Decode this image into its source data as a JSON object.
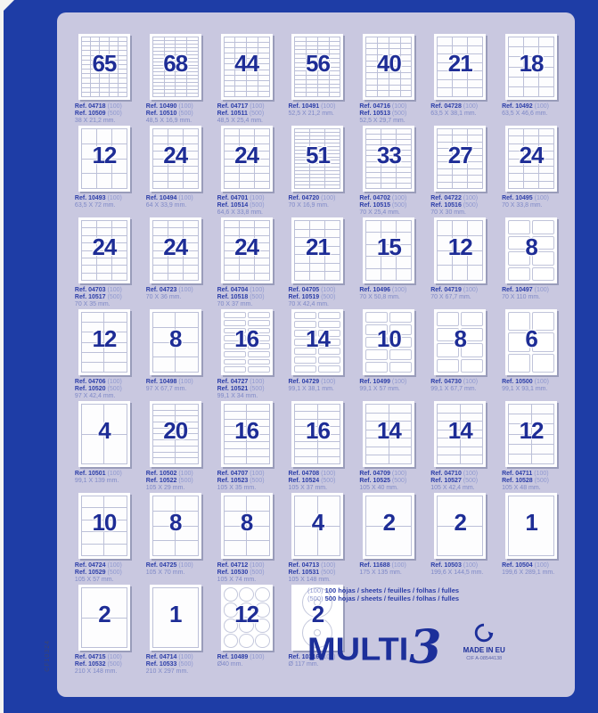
{
  "page": {
    "side_code": "CF10324",
    "colors": {
      "border_blue": "#1e3da6",
      "panel_lavender": "#c9c8e0",
      "brand_blue": "#1c2f9a",
      "count_blue": "#1e2d96"
    }
  },
  "legend": [
    {
      "qty": "(100)",
      "text": "100 hojas / sheets / feuilles / folhas / fulles"
    },
    {
      "qty": "(500)",
      "text": "500 hojas / sheets / feuilles / folhas / fulles"
    }
  ],
  "brand": {
    "name": "MULTI",
    "three": "3",
    "made_in": "MADE IN EU",
    "cif": "CIF A-08544138"
  },
  "products": [
    {
      "n": "65",
      "c": 5,
      "r": 13,
      "s": "rect",
      "refs": [
        [
          "Ref. 04718",
          "(100)"
        ],
        [
          "Ref. 10509",
          "(500)"
        ]
      ],
      "d": "38 X 21,2 mm."
    },
    {
      "n": "68",
      "c": 4,
      "r": 17,
      "s": "rect",
      "refs": [
        [
          "Ref. 10490",
          "(100)"
        ],
        [
          "Ref. 10510",
          "(500)"
        ]
      ],
      "d": "48,5 X 16,9 mm."
    },
    {
      "n": "44",
      "c": 4,
      "r": 11,
      "s": "rect",
      "refs": [
        [
          "Ref. 04717",
          "(100)"
        ],
        [
          "Ref. 10511",
          "(500)"
        ]
      ],
      "d": "48,5 X 25,4 mm."
    },
    {
      "n": "56",
      "c": 4,
      "r": 14,
      "s": "rect",
      "refs": [
        [
          "Ref. 10491",
          "(100)"
        ]
      ],
      "d": "52,5 X 21,2 mm."
    },
    {
      "n": "40",
      "c": 4,
      "r": 10,
      "s": "rect",
      "refs": [
        [
          "Ref. 04716",
          "(100)"
        ],
        [
          "Ref. 10513",
          "(500)"
        ]
      ],
      "d": "52,5 X 29,7 mm."
    },
    {
      "n": "21",
      "c": 3,
      "r": 7,
      "s": "rect",
      "refs": [
        [
          "Ref. 04728",
          "(100)"
        ]
      ],
      "d": "63,5 X 38,1 mm."
    },
    {
      "n": "18",
      "c": 3,
      "r": 6,
      "s": "rect",
      "refs": [
        [
          "Ref. 10492",
          "(100)"
        ]
      ],
      "d": "63,5 X 46,6 mm."
    },
    {
      "n": "12",
      "c": 3,
      "r": 4,
      "s": "rect",
      "refs": [
        [
          "Ref. 10493",
          "(100)"
        ]
      ],
      "d": "63,5 X 72 mm."
    },
    {
      "n": "24",
      "c": 3,
      "r": 8,
      "s": "rect",
      "refs": [
        [
          "Ref. 10494",
          "(100)"
        ]
      ],
      "d": "64 X 33,9 mm."
    },
    {
      "n": "24",
      "c": 3,
      "r": 8,
      "s": "rect",
      "refs": [
        [
          "Ref. 04701",
          "(100)"
        ],
        [
          "Ref. 10514",
          "(500)"
        ]
      ],
      "d": "64,6 X 33,8 mm."
    },
    {
      "n": "51",
      "c": 3,
      "r": 17,
      "s": "rect",
      "refs": [
        [
          "Ref. 04720",
          "(100)"
        ]
      ],
      "d": "70 X 16,9 mm."
    },
    {
      "n": "33",
      "c": 3,
      "r": 11,
      "s": "rect",
      "refs": [
        [
          "Ref. 04702",
          "(100)"
        ],
        [
          "Ref. 10515",
          "(500)"
        ]
      ],
      "d": "70 X 25,4 mm."
    },
    {
      "n": "27",
      "c": 3,
      "r": 9,
      "s": "rect",
      "refs": [
        [
          "Ref. 04722",
          "(100)"
        ],
        [
          "Ref. 10516",
          "(500)"
        ]
      ],
      "d": "70 X 30 mm."
    },
    {
      "n": "24",
      "c": 3,
      "r": 8,
      "s": "rect",
      "refs": [
        [
          "Ref. 10495",
          "(100)"
        ]
      ],
      "d": "70 X 33,8 mm."
    },
    {
      "n": "24",
      "c": 3,
      "r": 8,
      "s": "rect",
      "refs": [
        [
          "Ref. 04703",
          "(100)"
        ],
        [
          "Ref. 10517",
          "(500)"
        ]
      ],
      "d": "70 X 35 mm."
    },
    {
      "n": "24",
      "c": 3,
      "r": 8,
      "s": "rect",
      "refs": [
        [
          "Ref. 04723",
          "(100)"
        ]
      ],
      "d": "70 X 36 mm."
    },
    {
      "n": "24",
      "c": 3,
      "r": 8,
      "s": "rect",
      "refs": [
        [
          "Ref. 04704",
          "(100)"
        ],
        [
          "Ref. 10518",
          "(500)"
        ]
      ],
      "d": "70 X 37 mm."
    },
    {
      "n": "21",
      "c": 3,
      "r": 7,
      "s": "rect",
      "refs": [
        [
          "Ref. 04705",
          "(100)"
        ],
        [
          "Ref. 10519",
          "(500)"
        ]
      ],
      "d": "70 X 42,4 mm."
    },
    {
      "n": "15",
      "c": 3,
      "r": 5,
      "s": "rect",
      "refs": [
        [
          "Ref. 10496",
          "(100)"
        ]
      ],
      "d": "70 X 50,8 mm."
    },
    {
      "n": "12",
      "c": 3,
      "r": 4,
      "s": "rect",
      "refs": [
        [
          "Ref. 04719",
          "(100)"
        ]
      ],
      "d": "70 X 67,7 mm."
    },
    {
      "n": "8",
      "c": 2,
      "r": 4,
      "s": "round",
      "refs": [
        [
          "Ref. 10497",
          "(100)"
        ]
      ],
      "d": "70 X 110 mm."
    },
    {
      "n": "12",
      "c": 2,
      "r": 6,
      "s": "rect",
      "refs": [
        [
          "Ref. 04706",
          "(100)"
        ],
        [
          "Ref. 10520",
          "(500)"
        ]
      ],
      "d": "97 X 42,4 mm."
    },
    {
      "n": "8",
      "c": 2,
      "r": 4,
      "s": "rect",
      "refs": [
        [
          "Ref. 10498",
          "(100)"
        ]
      ],
      "d": "97 X 67,7 mm."
    },
    {
      "n": "16",
      "c": 2,
      "r": 8,
      "s": "round",
      "refs": [
        [
          "Ref. 04727",
          "(100)"
        ],
        [
          "Ref. 10521",
          "(500)"
        ]
      ],
      "d": "99,1 X 34 mm."
    },
    {
      "n": "14",
      "c": 2,
      "r": 7,
      "s": "round",
      "refs": [
        [
          "Ref. 04729",
          "(100)"
        ]
      ],
      "d": "99,1 X 38,1 mm."
    },
    {
      "n": "10",
      "c": 2,
      "r": 5,
      "s": "round",
      "refs": [
        [
          "Ref. 10499",
          "(100)"
        ]
      ],
      "d": "99,1 X 57 mm."
    },
    {
      "n": "8",
      "c": 2,
      "r": 4,
      "s": "round",
      "refs": [
        [
          "Ref. 04730",
          "(100)"
        ]
      ],
      "d": "99,1 X 67,7 mm."
    },
    {
      "n": "6",
      "c": 2,
      "r": 3,
      "s": "round",
      "refs": [
        [
          "Ref. 10500",
          "(100)"
        ]
      ],
      "d": "99,1 X 93,1 mm."
    },
    {
      "n": "4",
      "c": 2,
      "r": 2,
      "s": "rect",
      "refs": [
        [
          "Ref. 10501",
          "(100)"
        ]
      ],
      "d": "99,1 X 139 mm."
    },
    {
      "n": "20",
      "c": 2,
      "r": 10,
      "s": "rect",
      "refs": [
        [
          "Ref. 10502",
          "(100)"
        ],
        [
          "Ref. 10522",
          "(500)"
        ]
      ],
      "d": "105 X 29 mm."
    },
    {
      "n": "16",
      "c": 2,
      "r": 8,
      "s": "rect",
      "refs": [
        [
          "Ref. 04707",
          "(100)"
        ],
        [
          "Ref. 10523",
          "(500)"
        ]
      ],
      "d": "105 X 35 mm."
    },
    {
      "n": "16",
      "c": 2,
      "r": 8,
      "s": "rect",
      "refs": [
        [
          "Ref. 04708",
          "(100)"
        ],
        [
          "Ref. 10524",
          "(500)"
        ]
      ],
      "d": "105 X 37 mm."
    },
    {
      "n": "14",
      "c": 2,
      "r": 7,
      "s": "rect",
      "refs": [
        [
          "Ref. 04709",
          "(100)"
        ],
        [
          "Ref. 10525",
          "(500)"
        ]
      ],
      "d": "105 X 40 mm."
    },
    {
      "n": "14",
      "c": 2,
      "r": 7,
      "s": "rect",
      "refs": [
        [
          "Ref. 04710",
          "(100)"
        ],
        [
          "Ref. 10527",
          "(500)"
        ]
      ],
      "d": "105 X 42,4 mm."
    },
    {
      "n": "12",
      "c": 2,
      "r": 6,
      "s": "rect",
      "refs": [
        [
          "Ref. 04711",
          "(100)"
        ],
        [
          "Ref. 10528",
          "(500)"
        ]
      ],
      "d": "105 X 48 mm."
    },
    {
      "n": "10",
      "c": 2,
      "r": 5,
      "s": "rect",
      "refs": [
        [
          "Ref. 04724",
          "(100)"
        ],
        [
          "Ref. 10529",
          "(500)"
        ]
      ],
      "d": "105 X 57 mm."
    },
    {
      "n": "8",
      "c": 2,
      "r": 4,
      "s": "rect",
      "refs": [
        [
          "Ref. 04725",
          "(100)"
        ]
      ],
      "d": "105 X 70 mm."
    },
    {
      "n": "8",
      "c": 2,
      "r": 4,
      "s": "rect",
      "refs": [
        [
          "Ref. 04712",
          "(100)"
        ],
        [
          "Ref. 10530",
          "(500)"
        ]
      ],
      "d": "105 X 74 mm."
    },
    {
      "n": "4",
      "c": 2,
      "r": 2,
      "s": "rect",
      "refs": [
        [
          "Ref. 04713",
          "(100)"
        ],
        [
          "Ref. 10531",
          "(500)"
        ]
      ],
      "d": "105 X 148 mm."
    },
    {
      "n": "2",
      "c": 1,
      "r": 2,
      "s": "rect",
      "refs": [
        [
          "Ref. 11688",
          "(100)"
        ]
      ],
      "d": "175 X 135 mm."
    },
    {
      "n": "2",
      "c": 1,
      "r": 2,
      "s": "rect",
      "refs": [
        [
          "Ref. 10503",
          "(100)"
        ]
      ],
      "d": "199,6 X 144,5 mm."
    },
    {
      "n": "1",
      "c": 1,
      "r": 1,
      "s": "rect",
      "refs": [
        [
          "Ref. 10504",
          "(100)"
        ]
      ],
      "d": "199,6 X 289,1 mm."
    },
    {
      "n": "2",
      "c": 1,
      "r": 2,
      "s": "rect",
      "refs": [
        [
          "Ref. 04715",
          "(100)"
        ],
        [
          "Ref. 10532",
          "(500)"
        ]
      ],
      "d": "210 X 148 mm."
    },
    {
      "n": "1",
      "c": 1,
      "r": 1,
      "s": "rect",
      "refs": [
        [
          "Ref. 04714",
          "(100)"
        ],
        [
          "Ref. 10533",
          "(500)"
        ]
      ],
      "d": "210 X 297 mm."
    },
    {
      "n": "12",
      "c": 3,
      "r": 4,
      "s": "circle",
      "refs": [
        [
          "Ref. 10489",
          "(100)"
        ]
      ],
      "d": "Ø40 mm."
    },
    {
      "n": "2",
      "c": 1,
      "r": 2,
      "s": "cd",
      "refs": [
        [
          "Ref. 10316",
          "(100)"
        ]
      ],
      "d": "Ø 117 mm."
    }
  ]
}
